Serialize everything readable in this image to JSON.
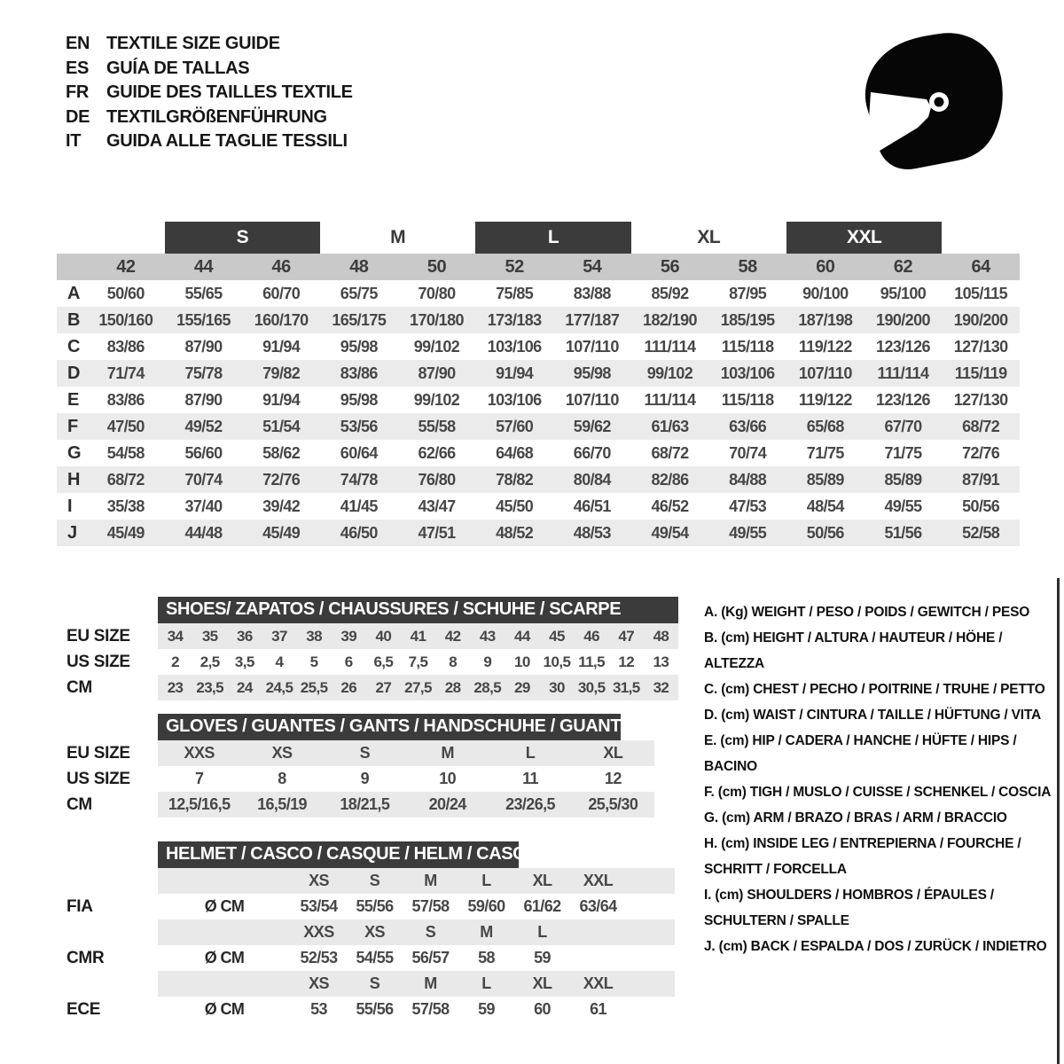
{
  "languages": [
    {
      "code": "EN",
      "label": "TEXTILE SIZE GUIDE"
    },
    {
      "code": "ES",
      "label": "GUÍA DE TALLAS"
    },
    {
      "code": "FR",
      "label": "GUIDE DES TAILLES TEXTILE"
    },
    {
      "code": "DE",
      "label": "TEXTILGRÖßENFÜHRUNG"
    },
    {
      "code": "IT",
      "label": "GUIDA ALLE TAGLIE TESSILI"
    }
  ],
  "icons": {
    "helmet": "racing-helmet-icon"
  },
  "colors": {
    "header_bar": "#3b3b3b",
    "size_band": "#c9c9c9",
    "row_stripe": "#ebebeb",
    "value_text": "#474747",
    "bar_text": "#ffffff"
  },
  "main_table": {
    "size_groups": [
      {
        "label": "S",
        "highlight": true
      },
      {
        "label": "M",
        "highlight": false
      },
      {
        "label": "L",
        "highlight": true
      },
      {
        "label": "XL",
        "highlight": false
      },
      {
        "label": "XXL",
        "highlight": true
      }
    ],
    "numeric_sizes": [
      "42",
      "44",
      "46",
      "48",
      "50",
      "52",
      "54",
      "56",
      "58",
      "60",
      "62",
      "64"
    ],
    "rows": [
      {
        "letter": "A",
        "values": [
          "50/60",
          "55/65",
          "60/70",
          "65/75",
          "70/80",
          "75/85",
          "83/88",
          "85/92",
          "87/95",
          "90/100",
          "95/100",
          "105/115"
        ]
      },
      {
        "letter": "B",
        "values": [
          "150/160",
          "155/165",
          "160/170",
          "165/175",
          "170/180",
          "173/183",
          "177/187",
          "182/190",
          "185/195",
          "187/198",
          "190/200",
          "190/200"
        ]
      },
      {
        "letter": "C",
        "values": [
          "83/86",
          "87/90",
          "91/94",
          "95/98",
          "99/102",
          "103/106",
          "107/110",
          "111/114",
          "115/118",
          "119/122",
          "123/126",
          "127/130"
        ]
      },
      {
        "letter": "D",
        "values": [
          "71/74",
          "75/78",
          "79/82",
          "83/86",
          "87/90",
          "91/94",
          "95/98",
          "99/102",
          "103/106",
          "107/110",
          "111/114",
          "115/119"
        ]
      },
      {
        "letter": "E",
        "values": [
          "83/86",
          "87/90",
          "91/94",
          "95/98",
          "99/102",
          "103/106",
          "107/110",
          "111/114",
          "115/118",
          "119/122",
          "123/126",
          "127/130"
        ]
      },
      {
        "letter": "F",
        "values": [
          "47/50",
          "49/52",
          "51/54",
          "53/56",
          "55/58",
          "57/60",
          "59/62",
          "61/63",
          "63/66",
          "65/68",
          "67/70",
          "68/72"
        ]
      },
      {
        "letter": "G",
        "values": [
          "54/58",
          "56/60",
          "58/62",
          "60/64",
          "62/66",
          "64/68",
          "66/70",
          "68/72",
          "70/74",
          "71/75",
          "71/75",
          "72/76"
        ]
      },
      {
        "letter": "H",
        "values": [
          "68/72",
          "70/74",
          "72/76",
          "74/78",
          "76/80",
          "78/82",
          "80/84",
          "82/86",
          "84/88",
          "85/89",
          "85/89",
          "87/91"
        ]
      },
      {
        "letter": "I",
        "values": [
          "35/38",
          "37/40",
          "39/42",
          "41/45",
          "43/47",
          "45/50",
          "46/51",
          "46/52",
          "47/53",
          "48/54",
          "49/55",
          "50/56"
        ]
      },
      {
        "letter": "J",
        "values": [
          "45/49",
          "44/48",
          "45/49",
          "46/50",
          "47/51",
          "48/52",
          "48/53",
          "49/54",
          "49/55",
          "50/56",
          "51/56",
          "52/58"
        ]
      }
    ]
  },
  "shoes": {
    "title": "SHOES/ ZAPATOS / CHAUSSURES / SCHUHE / SCARPE",
    "rows": [
      {
        "label": "EU SIZE",
        "values": [
          "34",
          "35",
          "36",
          "37",
          "38",
          "39",
          "40",
          "41",
          "42",
          "43",
          "44",
          "45",
          "46",
          "47",
          "48"
        ]
      },
      {
        "label": "US SIZE",
        "values": [
          "2",
          "2,5",
          "3,5",
          "4",
          "5",
          "6",
          "6,5",
          "7,5",
          "8",
          "9",
          "10",
          "10,5",
          "11,5",
          "12",
          "13"
        ]
      },
      {
        "label": "CM",
        "values": [
          "23",
          "23,5",
          "24",
          "24,5",
          "25,5",
          "26",
          "27",
          "27,5",
          "28",
          "28,5",
          "29",
          "30",
          "30,5",
          "31,5",
          "32"
        ]
      }
    ]
  },
  "gloves": {
    "title": "GLOVES / GUANTES / GANTS / HANDSCHUHE / GUANTI",
    "rows": [
      {
        "label": "EU SIZE",
        "values": [
          "XXS",
          "XS",
          "S",
          "M",
          "L",
          "XL"
        ]
      },
      {
        "label": "US SIZE",
        "values": [
          "7",
          "8",
          "9",
          "10",
          "11",
          "12"
        ]
      },
      {
        "label": "CM",
        "values": [
          "12,5/16,5",
          "16,5/19",
          "18/21,5",
          "20/24",
          "23/26,5",
          "25,5/30"
        ]
      }
    ]
  },
  "helmet": {
    "title": "HELMET / CASCO / CASQUE / HELM / CASCO",
    "rows": [
      {
        "label": "",
        "prefix": "",
        "shaded": true,
        "values": [
          "XS",
          "S",
          "M",
          "L",
          "XL",
          "XXL"
        ]
      },
      {
        "label": "FIA",
        "prefix": "Ø CM",
        "shaded": false,
        "values": [
          "53/54",
          "55/56",
          "57/58",
          "59/60",
          "61/62",
          "63/64"
        ]
      },
      {
        "label": "",
        "prefix": "",
        "shaded": true,
        "values": [
          "XXS",
          "XS",
          "S",
          "M",
          "L"
        ]
      },
      {
        "label": "CMR",
        "prefix": "Ø CM",
        "shaded": false,
        "values": [
          "52/53",
          "54/55",
          "56/57",
          "58",
          "59"
        ]
      },
      {
        "label": "",
        "prefix": "",
        "shaded": true,
        "values": [
          "XS",
          "S",
          "M",
          "L",
          "XL",
          "XXL"
        ]
      },
      {
        "label": "ECE",
        "prefix": "Ø CM",
        "shaded": false,
        "values": [
          "53",
          "55/56",
          "57/58",
          "59",
          "60",
          "61"
        ]
      }
    ]
  },
  "legend": [
    "A. (Kg) WEIGHT / PESO / POIDS / GEWITCH / PESO",
    "B. (cm) HEIGHT / ALTURA / HAUTEUR / HÖHE / ALTEZZA",
    "C. (cm) CHEST / PECHO / POITRINE / TRUHE / PETTO",
    "D. (cm) WAIST / CINTURA / TAILLE / HÜFTUNG / VITA",
    "E. (cm) HIP / CADERA / HANCHE / HÜFTE / HIPS / BACINO",
    "F. (cm) TIGH / MUSLO / CUISSE / SCHENKEL / COSCIA",
    "G. (cm) ARM / BRAZO / BRAS / ARM / BRACCIO",
    "H. (cm) INSIDE LEG / ENTREPIERNA / FOURCHE / SCHRITT / FORCELLA",
    "I. (cm) SHOULDERS / HOMBROS / ÉPAULES / SCHULTERN / SPALLE",
    "J. (cm) BACK / ESPALDA / DOS / ZURÜCK / INDIETRO"
  ]
}
